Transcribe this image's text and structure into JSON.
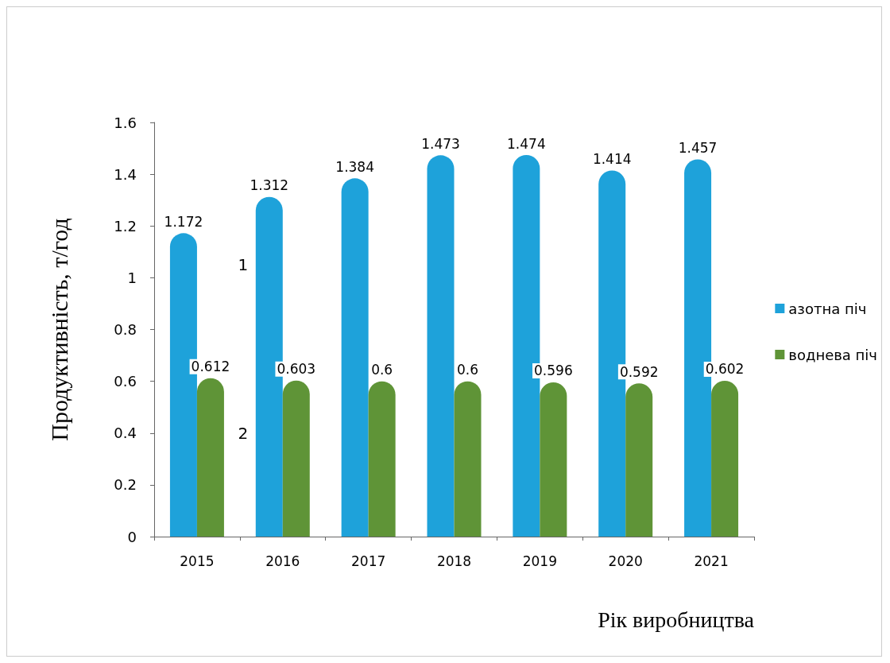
{
  "chart_data": {
    "type": "bar",
    "xlabel": "Рік виробництва",
    "ylabel": "Продуктивність, т/год",
    "categories": [
      "2015",
      "2016",
      "2017",
      "2018",
      "2019",
      "2020",
      "2021"
    ],
    "series": [
      {
        "name": "азотна піч",
        "color": "#1ea2da",
        "values": [
          1.172,
          1.312,
          1.384,
          1.473,
          1.474,
          1.414,
          1.457
        ]
      },
      {
        "name": "воднева піч",
        "color": "#5f9437",
        "values": [
          0.612,
          0.603,
          0.6,
          0.6,
          0.596,
          0.592,
          0.602
        ]
      }
    ],
    "ylim": [
      0,
      1.6
    ],
    "yticks": [
      0,
      0.2,
      0.4,
      0.6,
      0.8,
      1,
      1.2,
      1.4,
      1.6
    ],
    "data_labels": true,
    "grid": false,
    "legend": "right",
    "annotations": [
      {
        "text": "1",
        "x": "2015",
        "y": 1.05
      },
      {
        "text": "2",
        "x": "2015",
        "y": 0.4
      }
    ]
  }
}
